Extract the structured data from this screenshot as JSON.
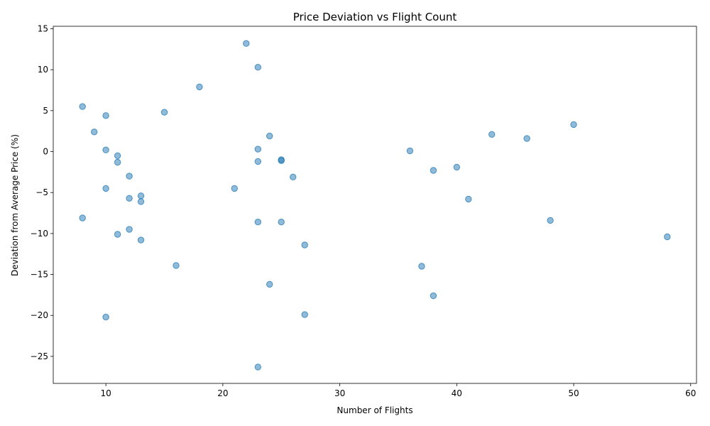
{
  "chart_data": {
    "type": "scatter",
    "title": "Price Deviation vs Flight Count",
    "xlabel": "Number of Flights",
    "ylabel": "Deviation from Average Price (%)",
    "xlim": [
      5.5,
      60.5
    ],
    "ylim": [
      -28.3,
      15.3
    ],
    "xticks": [
      10,
      20,
      30,
      40,
      50,
      60
    ],
    "yticks": [
      -25,
      -20,
      -15,
      -10,
      -5,
      0,
      5,
      10,
      15
    ],
    "grid": false,
    "color": "#1f77b4",
    "points": [
      {
        "x": 22,
        "y": 13.2
      },
      {
        "x": 23,
        "y": 10.3
      },
      {
        "x": 18,
        "y": 7.9
      },
      {
        "x": 8,
        "y": 5.5
      },
      {
        "x": 15,
        "y": 4.8
      },
      {
        "x": 10,
        "y": 4.4
      },
      {
        "x": 9,
        "y": 2.4
      },
      {
        "x": 24,
        "y": 1.9
      },
      {
        "x": 50,
        "y": 3.3
      },
      {
        "x": 43,
        "y": 2.1
      },
      {
        "x": 46,
        "y": 1.6
      },
      {
        "x": 10,
        "y": 0.2
      },
      {
        "x": 23,
        "y": 0.3
      },
      {
        "x": 36,
        "y": 0.1
      },
      {
        "x": 11,
        "y": -0.5
      },
      {
        "x": 11,
        "y": -1.3
      },
      {
        "x": 23,
        "y": -1.2
      },
      {
        "x": 25,
        "y": -1.0
      },
      {
        "x": 25,
        "y": -1.1
      },
      {
        "x": 40,
        "y": -1.9
      },
      {
        "x": 38,
        "y": -2.3
      },
      {
        "x": 12,
        "y": -3.0
      },
      {
        "x": 26,
        "y": -3.1
      },
      {
        "x": 10,
        "y": -4.5
      },
      {
        "x": 21,
        "y": -4.5
      },
      {
        "x": 13,
        "y": -5.4
      },
      {
        "x": 12,
        "y": -5.7
      },
      {
        "x": 13,
        "y": -6.1
      },
      {
        "x": 41,
        "y": -5.8
      },
      {
        "x": 8,
        "y": -8.1
      },
      {
        "x": 23,
        "y": -8.6
      },
      {
        "x": 25,
        "y": -8.6
      },
      {
        "x": 48,
        "y": -8.4
      },
      {
        "x": 12,
        "y": -9.5
      },
      {
        "x": 11,
        "y": -10.1
      },
      {
        "x": 13,
        "y": -10.8
      },
      {
        "x": 58,
        "y": -10.4
      },
      {
        "x": 27,
        "y": -11.4
      },
      {
        "x": 16,
        "y": -13.9
      },
      {
        "x": 37,
        "y": -14.0
      },
      {
        "x": 24,
        "y": -16.2
      },
      {
        "x": 38,
        "y": -17.6
      },
      {
        "x": 27,
        "y": -19.9
      },
      {
        "x": 10,
        "y": -20.2
      },
      {
        "x": 23,
        "y": -26.3
      }
    ]
  }
}
